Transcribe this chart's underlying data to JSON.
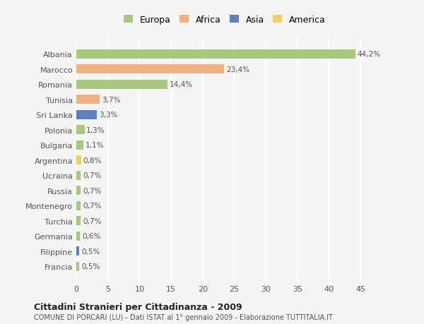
{
  "categories": [
    "Albania",
    "Marocco",
    "Romania",
    "Tunisia",
    "Sri Lanka",
    "Polonia",
    "Bulgaria",
    "Argentina",
    "Ucraina",
    "Russia",
    "Montenegro",
    "Turchia",
    "Germania",
    "Filippine",
    "Francia"
  ],
  "values": [
    44.2,
    23.4,
    14.4,
    3.7,
    3.3,
    1.3,
    1.1,
    0.8,
    0.7,
    0.7,
    0.7,
    0.7,
    0.6,
    0.5,
    0.5
  ],
  "labels": [
    "44,2%",
    "23,4%",
    "14,4%",
    "3,7%",
    "3,3%",
    "1,3%",
    "1,1%",
    "0,8%",
    "0,7%",
    "0,7%",
    "0,7%",
    "0,7%",
    "0,6%",
    "0,5%",
    "0,5%"
  ],
  "colors": [
    "#a8c880",
    "#f0b080",
    "#a8c880",
    "#f0b080",
    "#6080c0",
    "#a8c880",
    "#a8c880",
    "#f0d060",
    "#a8c880",
    "#a8c880",
    "#a8c880",
    "#a8c880",
    "#a8c880",
    "#6080c0",
    "#a8c880"
  ],
  "legend_labels": [
    "Europa",
    "Africa",
    "Asia",
    "America"
  ],
  "legend_colors": [
    "#a8c880",
    "#f0b080",
    "#6080c0",
    "#f0d060"
  ],
  "title": "Cittadini Stranieri per Cittadinanza - 2009",
  "subtitle": "COMUNE DI PORCARI (LU) - Dati ISTAT al 1° gennaio 2009 - Elaborazione TUTTITALIA.IT",
  "xlim": [
    0,
    47
  ],
  "xticks": [
    0,
    5,
    10,
    15,
    20,
    25,
    30,
    35,
    40,
    45
  ],
  "bg_color": "#f5f5f5",
  "grid_color": "#ffffff",
  "bar_height": 0.6
}
